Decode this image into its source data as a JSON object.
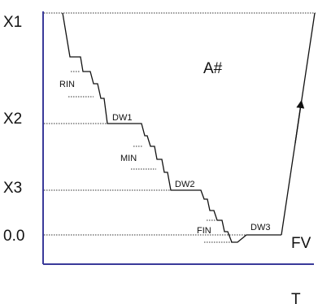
{
  "diagram": {
    "levels": {
      "x1": "X1",
      "x2": "X2",
      "x3": "X3",
      "zero": "0.0"
    },
    "rates": {
      "rin": "RIN",
      "min": "MIN",
      "fin": "FIN"
    },
    "dwells": {
      "dw1": "DW1",
      "dw2": "DW2",
      "dw3": "DW3"
    },
    "area_label": "A#",
    "end_label": "FV",
    "axis_label": "T",
    "colors": {
      "axis": "#3a3a9a",
      "curve": "#111111",
      "guide": "#333333"
    }
  }
}
